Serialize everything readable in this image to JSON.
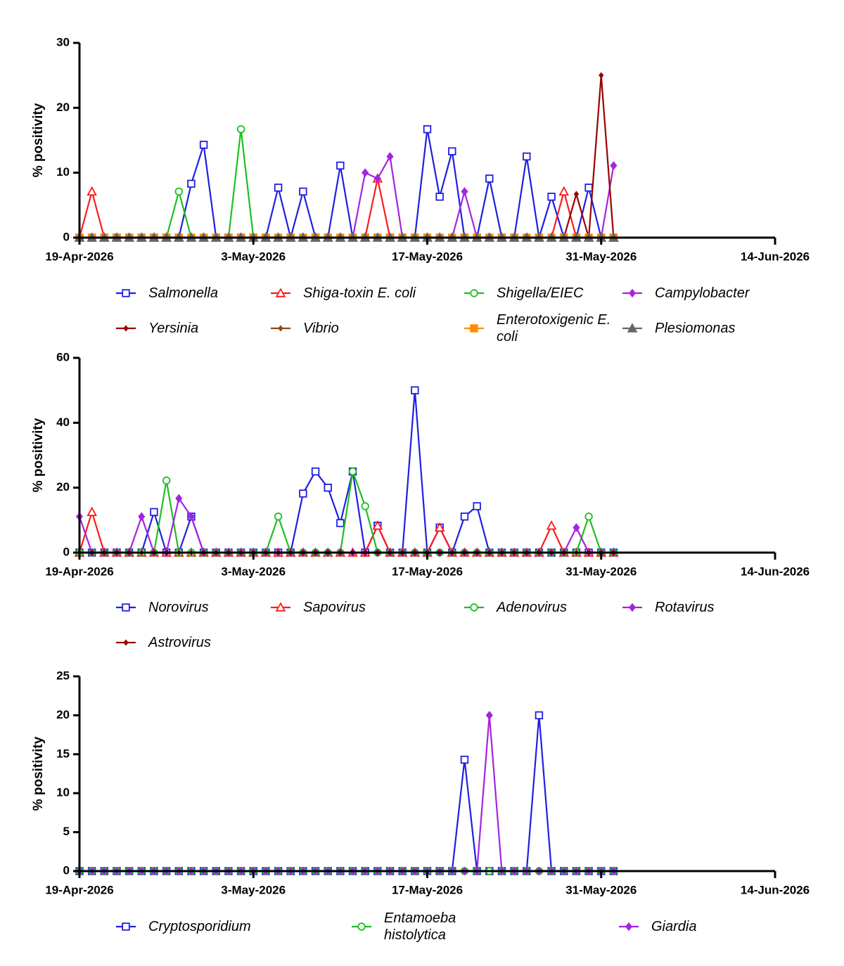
{
  "chart_data": [
    {
      "type": "line",
      "y_label": "% positivity",
      "x": [
        "2026-04-19",
        "2026-04-20",
        "2026-04-21",
        "2026-04-22",
        "2026-04-23",
        "2026-04-24",
        "2026-04-25",
        "2026-04-26",
        "2026-04-27",
        "2026-04-28",
        "2026-04-29",
        "2026-04-30",
        "2026-05-01",
        "2026-05-02",
        "2026-05-03",
        "2026-05-04",
        "2026-05-05",
        "2026-05-06",
        "2026-05-07",
        "2026-05-08",
        "2026-05-09",
        "2026-05-10",
        "2026-05-11",
        "2026-05-12",
        "2026-05-13",
        "2026-05-14",
        "2026-05-15",
        "2026-05-16",
        "2026-05-17",
        "2026-05-18",
        "2026-05-19",
        "2026-05-20",
        "2026-05-21",
        "2026-05-22",
        "2026-05-23",
        "2026-05-24",
        "2026-05-25",
        "2026-05-26",
        "2026-05-27",
        "2026-05-28",
        "2026-05-29",
        "2026-05-30",
        "2026-05-31",
        "2026-06-01"
      ],
      "xlim": [
        "2026-04-19",
        "2026-06-14"
      ],
      "xticks": [
        {
          "value": "2026-04-19",
          "label": "19-Apr-2026"
        },
        {
          "value": "2026-05-03",
          "label": "3-May-2026"
        },
        {
          "value": "2026-05-17",
          "label": "17-May-2026"
        },
        {
          "value": "2026-05-31",
          "label": "31-May-2026"
        },
        {
          "value": "2026-06-14",
          "label": "14-Jun-2026"
        }
      ],
      "ylim": [
        0,
        30
      ],
      "yticks": [
        0,
        10,
        20,
        30
      ],
      "series": [
        {
          "name": "Salmonella",
          "color": "#1f1fe0",
          "marker": "square-open",
          "values": [
            0,
            0,
            0,
            0,
            0,
            0,
            0,
            0,
            0,
            8.3,
            14.3,
            0,
            0,
            0,
            0,
            0,
            7.7,
            0,
            7.1,
            0,
            0,
            11.1,
            0,
            0,
            0,
            0,
            0,
            0,
            16.7,
            6.3,
            13.3,
            0,
            0,
            9.1,
            0,
            0,
            12.5,
            0,
            6.3,
            0,
            0,
            7.7,
            0,
            0
          ]
        },
        {
          "name": "Shiga-toxin E. coli",
          "color": "#ff1a1a",
          "marker": "triangle-open",
          "values": [
            0,
            7.1,
            0,
            0,
            0,
            0,
            0,
            0,
            0,
            0,
            0,
            0,
            0,
            0,
            0,
            0,
            0,
            0,
            0,
            0,
            0,
            0,
            0,
            0,
            9.1,
            0,
            0,
            0,
            0,
            0,
            0,
            0,
            0,
            0,
            0,
            0,
            0,
            0,
            0,
            7.1,
            0,
            0,
            0,
            0
          ]
        },
        {
          "name": "Shigella/EIEC",
          "color": "#1fbf1f",
          "marker": "circle-open",
          "values": [
            0,
            0,
            0,
            0,
            0,
            0,
            0,
            0,
            7.1,
            0,
            0,
            0,
            0,
            16.7,
            0,
            0,
            0,
            0,
            0,
            0,
            0,
            0,
            0,
            0,
            0,
            0,
            0,
            0,
            0,
            0,
            0,
            0,
            0,
            0,
            0,
            0,
            0,
            0,
            0,
            0,
            0,
            0,
            0,
            0
          ]
        },
        {
          "name": "Campylobacter",
          "color": "#a424e0",
          "marker": "diamond",
          "values": [
            0,
            0,
            0,
            0,
            0,
            0,
            0,
            0,
            0,
            0,
            0,
            0,
            0,
            0,
            0,
            0,
            0,
            0,
            0,
            0,
            0,
            0,
            0,
            10,
            9.1,
            12.5,
            0,
            0,
            0,
            0,
            0,
            7.1,
            0,
            0,
            0,
            0,
            0,
            0,
            0,
            0,
            0,
            0,
            0,
            11.1
          ]
        },
        {
          "name": "Yersinia",
          "color": "#9b0000",
          "marker": "diamond-small",
          "values": [
            0,
            0,
            0,
            0,
            0,
            0,
            0,
            0,
            0,
            0,
            0,
            0,
            0,
            0,
            0,
            0,
            0,
            0,
            0,
            0,
            0,
            0,
            0,
            0,
            0,
            0,
            0,
            0,
            0,
            0,
            0,
            0,
            0,
            0,
            0,
            0,
            0,
            0,
            0,
            0,
            6.7,
            0,
            25,
            0
          ]
        },
        {
          "name": "Vibrio",
          "color": "#8b4a12",
          "marker": "diamond-small",
          "values": [
            0,
            0,
            0,
            0,
            0,
            0,
            0,
            0,
            0,
            0,
            0,
            0,
            0,
            0,
            0,
            0,
            0,
            0,
            0,
            0,
            0,
            0,
            0,
            0,
            0,
            0,
            0,
            0,
            0,
            0,
            0,
            0,
            0,
            0,
            0,
            0,
            0,
            0,
            0,
            0,
            0,
            0,
            0,
            0
          ]
        },
        {
          "name": "Enterotoxigenic E. coli",
          "color": "#ff8c00",
          "marker": "square",
          "values": [
            0,
            0,
            0,
            0,
            0,
            0,
            0,
            0,
            0,
            0,
            0,
            0,
            0,
            0,
            0,
            0,
            0,
            0,
            0,
            0,
            0,
            0,
            0,
            0,
            0,
            0,
            0,
            0,
            0,
            0,
            0,
            0,
            0,
            0,
            0,
            0,
            0,
            0,
            0,
            0,
            0,
            0,
            0,
            0
          ]
        },
        {
          "name": "Plesiomonas",
          "color": "#666666",
          "marker": "triangle",
          "values": [
            0,
            0,
            0,
            0,
            0,
            0,
            0,
            0,
            0,
            0,
            0,
            0,
            0,
            0,
            0,
            0,
            0,
            0,
            0,
            0,
            0,
            0,
            0,
            0,
            0,
            0,
            0,
            0,
            0,
            0,
            0,
            0,
            0,
            0,
            0,
            0,
            0,
            0,
            0,
            0,
            0,
            0,
            0,
            0
          ]
        }
      ]
    },
    {
      "type": "line",
      "y_label": "% positivity",
      "x": [
        "2026-04-19",
        "2026-04-20",
        "2026-04-21",
        "2026-04-22",
        "2026-04-23",
        "2026-04-24",
        "2026-04-25",
        "2026-04-26",
        "2026-04-27",
        "2026-04-28",
        "2026-04-29",
        "2026-04-30",
        "2026-05-01",
        "2026-05-02",
        "2026-05-03",
        "2026-05-04",
        "2026-05-05",
        "2026-05-06",
        "2026-05-07",
        "2026-05-08",
        "2026-05-09",
        "2026-05-10",
        "2026-05-11",
        "2026-05-12",
        "2026-05-13",
        "2026-05-14",
        "2026-05-15",
        "2026-05-16",
        "2026-05-17",
        "2026-05-18",
        "2026-05-19",
        "2026-05-20",
        "2026-05-21",
        "2026-05-22",
        "2026-05-23",
        "2026-05-24",
        "2026-05-25",
        "2026-05-26",
        "2026-05-27",
        "2026-05-28",
        "2026-05-29",
        "2026-05-30",
        "2026-05-31",
        "2026-06-01"
      ],
      "xlim": [
        "2026-04-19",
        "2026-06-14"
      ],
      "xticks": [
        {
          "value": "2026-04-19",
          "label": "19-Apr-2026"
        },
        {
          "value": "2026-05-03",
          "label": "3-May-2026"
        },
        {
          "value": "2026-05-17",
          "label": "17-May-2026"
        },
        {
          "value": "2026-05-31",
          "label": "31-May-2026"
        },
        {
          "value": "2026-06-14",
          "label": "14-Jun-2026"
        }
      ],
      "ylim": [
        0,
        60
      ],
      "yticks": [
        0,
        20,
        40,
        60
      ],
      "series": [
        {
          "name": "Norovirus",
          "color": "#1f1fe0",
          "marker": "square-open",
          "values": [
            0,
            0,
            0,
            0,
            0,
            0,
            12.5,
            0,
            0,
            11.1,
            0,
            0,
            0,
            0,
            0,
            0,
            0,
            0,
            18.2,
            25,
            20,
            9.1,
            25,
            0,
            8.3,
            0,
            0,
            50,
            0,
            7.7,
            0,
            11.1,
            14.3,
            0,
            0,
            0,
            0,
            0,
            0,
            0,
            0,
            0,
            0,
            0
          ]
        },
        {
          "name": "Sapovirus",
          "color": "#ff1a1a",
          "marker": "triangle-open",
          "values": [
            0,
            12.5,
            0,
            0,
            0,
            0,
            0,
            0,
            0,
            0,
            0,
            0,
            0,
            0,
            0,
            0,
            0,
            0,
            0,
            0,
            0,
            0,
            0,
            0,
            8.3,
            0,
            0,
            0,
            0,
            7.7,
            0,
            0,
            0,
            0,
            0,
            0,
            0,
            0,
            8.3,
            0,
            0,
            0,
            0,
            0
          ]
        },
        {
          "name": "Adenovirus",
          "color": "#1fbf1f",
          "marker": "circle-open",
          "values": [
            0,
            0,
            0,
            0,
            0,
            0,
            0,
            22.2,
            0,
            0,
            0,
            0,
            0,
            0,
            0,
            0,
            11.1,
            0,
            0,
            0,
            0,
            0,
            25,
            14.3,
            0,
            0,
            0,
            0,
            0,
            0,
            0,
            0,
            0,
            0,
            0,
            0,
            0,
            0,
            0,
            0,
            0,
            11.1,
            0,
            0
          ]
        },
        {
          "name": "Rotavirus",
          "color": "#a424e0",
          "marker": "diamond",
          "values": [
            11.1,
            0,
            0,
            0,
            0,
            11.1,
            0,
            0,
            16.7,
            11.1,
            0,
            0,
            0,
            0,
            0,
            0,
            0,
            0,
            0,
            0,
            0,
            0,
            0,
            0,
            0,
            0,
            0,
            0,
            0,
            0,
            0,
            0,
            0,
            0,
            0,
            0,
            0,
            0,
            0,
            0,
            7.7,
            0,
            0,
            0
          ]
        },
        {
          "name": "Astrovirus",
          "color": "#9b0000",
          "marker": "diamond-small",
          "values": [
            0,
            0,
            0,
            0,
            0,
            0,
            0,
            0,
            0,
            0,
            0,
            0,
            0,
            0,
            0,
            0,
            0,
            0,
            0,
            0,
            0,
            0,
            0,
            0,
            0,
            0,
            0,
            0,
            0,
            0,
            0,
            0,
            0,
            0,
            0,
            0,
            0,
            0,
            0,
            0,
            0,
            0,
            0,
            0
          ]
        }
      ]
    },
    {
      "type": "line",
      "y_label": "% positivity",
      "x": [
        "2026-04-19",
        "2026-04-20",
        "2026-04-21",
        "2026-04-22",
        "2026-04-23",
        "2026-04-24",
        "2026-04-25",
        "2026-04-26",
        "2026-04-27",
        "2026-04-28",
        "2026-04-29",
        "2026-04-30",
        "2026-05-01",
        "2026-05-02",
        "2026-05-03",
        "2026-05-04",
        "2026-05-05",
        "2026-05-06",
        "2026-05-07",
        "2026-05-08",
        "2026-05-09",
        "2026-05-10",
        "2026-05-11",
        "2026-05-12",
        "2026-05-13",
        "2026-05-14",
        "2026-05-15",
        "2026-05-16",
        "2026-05-17",
        "2026-05-18",
        "2026-05-19",
        "2026-05-20",
        "2026-05-21",
        "2026-05-22",
        "2026-05-23",
        "2026-05-24",
        "2026-05-25",
        "2026-05-26",
        "2026-05-27",
        "2026-05-28",
        "2026-05-29",
        "2026-05-30",
        "2026-05-31",
        "2026-06-01"
      ],
      "xlim": [
        "2026-04-19",
        "2026-06-14"
      ],
      "xticks": [
        {
          "value": "2026-04-19",
          "label": "19-Apr-2026"
        },
        {
          "value": "2026-05-03",
          "label": "3-May-2026"
        },
        {
          "value": "2026-05-17",
          "label": "17-May-2026"
        },
        {
          "value": "2026-05-31",
          "label": "31-May-2026"
        },
        {
          "value": "2026-06-14",
          "label": "14-Jun-2026"
        }
      ],
      "ylim": [
        0,
        25
      ],
      "yticks": [
        0,
        5,
        10,
        15,
        20,
        25
      ],
      "series": [
        {
          "name": "Cryptosporidium",
          "color": "#1f1fe0",
          "marker": "square-open",
          "values": [
            0,
            0,
            0,
            0,
            0,
            0,
            0,
            0,
            0,
            0,
            0,
            0,
            0,
            0,
            0,
            0,
            0,
            0,
            0,
            0,
            0,
            0,
            0,
            0,
            0,
            0,
            0,
            0,
            0,
            0,
            0,
            14.3,
            0,
            0,
            0,
            0,
            0,
            20,
            0,
            0,
            0,
            0,
            0,
            0
          ]
        },
        {
          "name": "Entamoeba histolytica",
          "color": "#1fbf1f",
          "marker": "circle-open",
          "values": [
            0,
            0,
            0,
            0,
            0,
            0,
            0,
            0,
            0,
            0,
            0,
            0,
            0,
            0,
            0,
            0,
            0,
            0,
            0,
            0,
            0,
            0,
            0,
            0,
            0,
            0,
            0,
            0,
            0,
            0,
            0,
            0,
            0,
            0,
            0,
            0,
            0,
            0,
            0,
            0,
            0,
            0,
            0,
            0
          ]
        },
        {
          "name": "Giardia",
          "color": "#a424e0",
          "marker": "diamond",
          "values": [
            0,
            0,
            0,
            0,
            0,
            0,
            0,
            0,
            0,
            0,
            0,
            0,
            0,
            0,
            0,
            0,
            0,
            0,
            0,
            0,
            0,
            0,
            0,
            0,
            0,
            0,
            0,
            0,
            0,
            0,
            0,
            0,
            0,
            20,
            0,
            0,
            0,
            0,
            0,
            0,
            0,
            0,
            0,
            0
          ]
        }
      ]
    }
  ]
}
